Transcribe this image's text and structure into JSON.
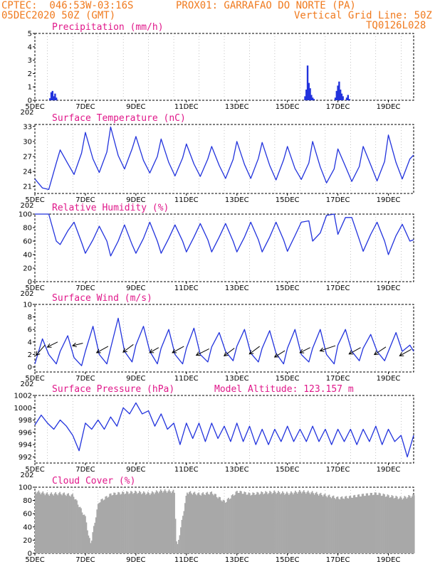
{
  "header": {
    "line1_left": "CPTEC:  046:53W-03:16S",
    "line1_right": "PROX01: GARRAFAO DO NORTE (PA)",
    "line2_left": "05DEC2020 50Z (GMT)",
    "line2_right": "Vertical Grid Line: 50Z",
    "line3_right": "TQ0126L028"
  },
  "colors": {
    "header": "#f07a1e",
    "title": "#e0188a",
    "series": "#2233dd",
    "cloud": "#a8a8a8",
    "frame": "#000000"
  },
  "x_labels": [
    "5DEC",
    "7DEC",
    "9DEC",
    "11DEC",
    "13DEC",
    "15DEC",
    "17DEC",
    "19DEC"
  ],
  "extra_label": "202",
  "model_altitude": "Model Altitude: 123.157 m",
  "chart_data": [
    {
      "type": "bar",
      "title": "Precipitation (mm/h)",
      "ylim": [
        0,
        5
      ],
      "yticks": [
        "0",
        "1",
        "2",
        "3",
        "4",
        "5"
      ],
      "x_days": [
        0.6,
        0.65,
        0.7,
        0.75,
        0.8,
        0.85,
        10.7,
        10.75,
        10.8,
        10.85,
        10.9,
        10.95,
        11.0,
        11.05,
        11.9,
        11.95,
        12.0,
        12.05,
        12.1,
        12.15,
        12.2,
        12.35,
        12.4,
        12.45
      ],
      "values": [
        0.15,
        0.6,
        0.7,
        0.3,
        0.5,
        0.2,
        0.3,
        0.8,
        2.6,
        1.3,
        0.9,
        0.4,
        0.2,
        0.1,
        0.2,
        0.7,
        1.1,
        1.4,
        0.8,
        0.5,
        0.3,
        0.2,
        0.4,
        0.1
      ]
    },
    {
      "type": "line",
      "title": "Surface Temperature (nC)",
      "ylim": [
        19.6,
        33.4
      ],
      "yticks": [
        "21",
        "24",
        "27",
        "30",
        "33"
      ],
      "x": [
        0,
        0.3,
        0.55,
        0.85,
        1.0,
        1.3,
        1.55,
        1.85,
        2.0,
        2.3,
        2.55,
        2.85,
        3.0,
        3.3,
        3.55,
        3.85,
        4.0,
        4.3,
        4.55,
        4.85,
        5.0,
        5.3,
        5.55,
        5.85,
        6.0,
        6.3,
        6.55,
        6.85,
        7.0,
        7.3,
        7.55,
        7.85,
        8.0,
        8.3,
        8.55,
        8.85,
        9.0,
        9.3,
        9.55,
        9.85,
        10.0,
        10.3,
        10.55,
        10.85,
        11.0,
        11.3,
        11.55,
        11.85,
        12.0,
        12.3,
        12.55,
        12.85,
        13.0,
        13.3,
        13.55,
        13.85,
        14.0,
        14.3,
        14.55,
        14.85,
        15.0
      ],
      "series": [
        {
          "values": [
            22.5,
            20.7,
            20.4,
            25.7,
            28.3,
            25.6,
            23.4,
            27.7,
            31.8,
            26.5,
            23.8,
            27.9,
            32.9,
            27.2,
            24.5,
            28.5,
            31.0,
            26.2,
            23.7,
            27.0,
            30.5,
            25.8,
            23.1,
            26.7,
            29.5,
            25.5,
            23.0,
            26.5,
            29.0,
            25.2,
            22.6,
            26.4,
            30.0,
            25.4,
            22.6,
            26.6,
            29.8,
            25.2,
            22.3,
            26.3,
            29.0,
            24.6,
            22.4,
            25.7,
            30.0,
            24.9,
            21.7,
            24.5,
            28.5,
            25.0,
            22.0,
            25.0,
            29.0,
            25.3,
            22.1,
            26.0,
            31.3,
            25.8,
            22.5,
            26.5,
            27.3
          ]
        }
      ]
    },
    {
      "type": "line",
      "title": "Relative Humidity (%)",
      "ylim": [
        0,
        100
      ],
      "yticks": [
        "0",
        "20",
        "40",
        "60",
        "80",
        "100"
      ],
      "x": [
        0,
        0.3,
        0.55,
        0.85,
        1.0,
        1.3,
        1.55,
        1.85,
        2.0,
        2.3,
        2.55,
        2.85,
        3.0,
        3.3,
        3.55,
        3.85,
        4.0,
        4.3,
        4.55,
        4.85,
        5.0,
        5.3,
        5.55,
        5.85,
        6.0,
        6.3,
        6.55,
        6.85,
        7.0,
        7.3,
        7.55,
        7.85,
        8.0,
        8.3,
        8.55,
        8.85,
        9.0,
        9.3,
        9.55,
        9.85,
        10.0,
        10.3,
        10.55,
        10.85,
        11.0,
        11.3,
        11.55,
        11.85,
        12.0,
        12.3,
        12.55,
        12.85,
        13.0,
        13.3,
        13.55,
        13.85,
        14.0,
        14.3,
        14.55,
        14.85,
        15.0
      ],
      "series": [
        {
          "values": [
            100,
            100,
            100,
            60,
            55,
            75,
            88,
            58,
            42,
            62,
            82,
            60,
            38,
            60,
            84,
            55,
            42,
            64,
            88,
            60,
            42,
            64,
            84,
            60,
            44,
            66,
            86,
            62,
            44,
            66,
            86,
            60,
            44,
            66,
            88,
            62,
            44,
            66,
            88,
            62,
            45,
            68,
            88,
            90,
            60,
            72,
            98,
            100,
            70,
            95,
            95,
            62,
            45,
            70,
            88,
            60,
            40,
            68,
            85,
            60,
            62
          ]
        }
      ]
    },
    {
      "type": "line",
      "title": "Surface Wind (m/s)",
      "ylim": [
        -0.8,
        10
      ],
      "yticks": [
        "0",
        "2",
        "4",
        "6",
        "8",
        "10"
      ],
      "x": [
        0,
        0.3,
        0.55,
        0.85,
        1.0,
        1.3,
        1.55,
        1.85,
        2.0,
        2.3,
        2.55,
        2.85,
        3.0,
        3.3,
        3.55,
        3.85,
        4.0,
        4.3,
        4.55,
        4.85,
        5.0,
        5.3,
        5.55,
        5.85,
        6.0,
        6.3,
        6.55,
        6.85,
        7.0,
        7.3,
        7.55,
        7.85,
        8.0,
        8.3,
        8.55,
        8.85,
        9.0,
        9.3,
        9.55,
        9.85,
        10.0,
        10.3,
        10.55,
        10.85,
        11.0,
        11.3,
        11.55,
        11.85,
        12.0,
        12.3,
        12.55,
        12.85,
        13.0,
        13.3,
        13.55,
        13.85,
        14.0,
        14.3,
        14.55,
        14.85,
        15.0
      ],
      "series": [
        {
          "values": [
            0.5,
            4.5,
            2.0,
            0.5,
            2.5,
            5.0,
            1.5,
            0.2,
            2.5,
            6.5,
            2.0,
            0.5,
            3.0,
            7.8,
            2.5,
            0.8,
            3.5,
            6.5,
            2.5,
            0.5,
            3.0,
            6.0,
            2.0,
            0.5,
            3.0,
            6.2,
            2.0,
            0.8,
            3.2,
            5.5,
            2.5,
            1.0,
            3.3,
            6.0,
            2.2,
            0.8,
            3.0,
            5.8,
            2.2,
            0.5,
            3.0,
            6.0,
            2.0,
            0.8,
            3.0,
            6.0,
            2.0,
            0.5,
            3.5,
            6.0,
            2.5,
            1.0,
            3.0,
            5.2,
            2.5,
            1.0,
            2.5,
            5.5,
            2.5,
            3.5,
            2.5
          ]
        }
      ],
      "vectors": {
        "x": [
          0.4,
          0.9,
          1.9,
          2.9,
          3.9,
          4.9,
          5.9,
          6.9,
          7.9,
          8.9,
          9.9,
          10.9,
          11.9,
          12.9,
          13.9,
          14.9
        ],
        "y": [
          3.5,
          4.0,
          3.8,
          3.3,
          3.6,
          3.1,
          3.3,
          2.9,
          3.0,
          3.3,
          2.6,
          3.1,
          3.4,
          3.1,
          3.2,
          2.8
        ],
        "u": [
          0.7,
          0.8,
          0.8,
          0.9,
          0.8,
          0.7,
          0.9,
          1.0,
          0.8,
          0.8,
          0.8,
          0.8,
          1.2,
          0.9,
          0.9,
          0.9
        ],
        "v": [
          -0.8,
          -0.4,
          -0.2,
          -0.5,
          -0.6,
          -0.4,
          -0.5,
          -0.5,
          -0.6,
          -0.6,
          -0.5,
          -0.4,
          -0.4,
          -0.5,
          -0.6,
          -0.5
        ]
      }
    },
    {
      "type": "line",
      "title": "Surface Pressure (hPa)",
      "ylim": [
        991,
        1002
      ],
      "yticks": [
        "992",
        "994",
        "996",
        "998",
        "1000",
        "1002"
      ],
      "x": [
        0,
        0.25,
        0.5,
        0.75,
        1.0,
        1.25,
        1.5,
        1.75,
        2.0,
        2.25,
        2.5,
        2.75,
        3.0,
        3.25,
        3.5,
        3.75,
        4.0,
        4.25,
        4.5,
        4.75,
        5.0,
        5.25,
        5.5,
        5.75,
        6.0,
        6.25,
        6.5,
        6.75,
        7.0,
        7.25,
        7.5,
        7.75,
        8.0,
        8.25,
        8.5,
        8.75,
        9.0,
        9.25,
        9.5,
        9.75,
        10.0,
        10.25,
        10.5,
        10.75,
        11.0,
        11.25,
        11.5,
        11.75,
        12.0,
        12.25,
        12.5,
        12.75,
        13.0,
        13.25,
        13.5,
        13.75,
        14.0,
        14.25,
        14.5,
        14.75,
        15.0
      ],
      "series": [
        {
          "values": [
            997.2,
            998.8,
            997.5,
            996.5,
            998.0,
            997.0,
            995.5,
            993.0,
            997.5,
            996.5,
            998.0,
            996.5,
            998.5,
            997.0,
            1000.0,
            999.0,
            1000.8,
            999.0,
            999.5,
            997.0,
            999.0,
            996.5,
            997.5,
            994.0,
            997.5,
            995.0,
            997.5,
            994.5,
            997.5,
            995.0,
            997.0,
            994.5,
            997.5,
            994.5,
            997.0,
            994.0,
            996.5,
            994.0,
            996.5,
            994.5,
            997.0,
            994.5,
            996.5,
            994.5,
            997.0,
            994.5,
            996.5,
            994.0,
            996.5,
            994.5,
            996.5,
            994.0,
            996.5,
            994.5,
            997.0,
            994.0,
            996.5,
            994.5,
            995.5,
            992.0,
            995.5
          ]
        }
      ]
    },
    {
      "type": "bar",
      "title": "Cloud Cover (%)",
      "ylim": [
        0,
        100
      ],
      "yticks": [
        "0",
        "20",
        "40",
        "60",
        "80",
        "100"
      ],
      "x": [
        0,
        0.5,
        1.0,
        1.5,
        2.0,
        2.1,
        2.2,
        2.3,
        2.5,
        3.0,
        3.5,
        4.0,
        4.5,
        5.0,
        5.5,
        5.6,
        6.0,
        6.5,
        7.0,
        7.5,
        8.0,
        8.5,
        9.0,
        9.5,
        10.0,
        10.5,
        11.0,
        11.5,
        12.0,
        12.5,
        13.0,
        13.5,
        14.0,
        14.5,
        15.0
      ],
      "values": [
        96,
        92,
        93,
        90,
        55,
        28,
        18,
        40,
        80,
        92,
        94,
        95,
        93,
        97,
        96,
        8,
        95,
        92,
        94,
        80,
        96,
        92,
        94,
        95,
        93,
        96,
        94,
        90,
        86,
        88,
        91,
        93,
        89,
        86,
        90
      ]
    }
  ]
}
